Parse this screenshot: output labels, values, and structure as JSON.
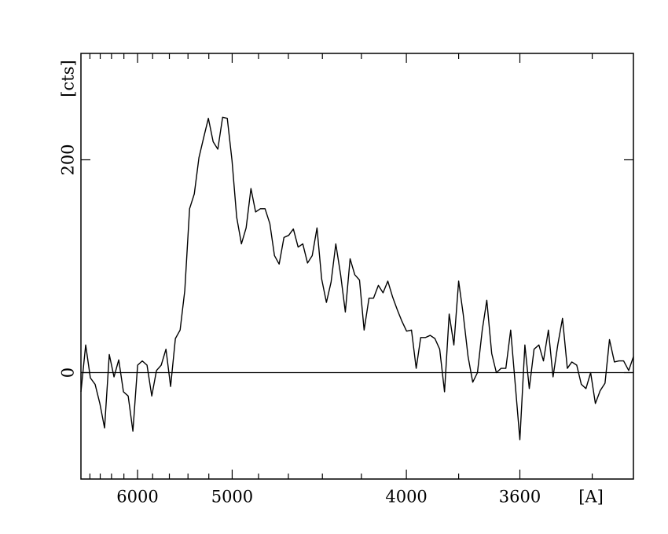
{
  "chart_data": {
    "type": "line",
    "y_label": "[cts]",
    "x_label": "[A]",
    "xscale": "inverse-square",
    "xlim": [
      6990,
      3300
    ],
    "xticks": [
      6000,
      5000,
      4000,
      3600
    ],
    "xminorticks": [
      6800,
      6600,
      6400,
      6200,
      5800,
      5600,
      5400,
      5200,
      4800,
      4600,
      4400,
      4200,
      3800,
      3400
    ],
    "ylim": [
      -100,
      300
    ],
    "yticks": [
      0,
      200
    ],
    "zero_line": true,
    "x": [
      6990,
      6888,
      6791,
      6697,
      6607,
      6521,
      6438,
      6358,
      6281,
      6207,
      6135,
      6066,
      5999,
      5935,
      5872,
      5811,
      5752,
      5695,
      5639,
      5586,
      5533,
      5482,
      5433,
      5384,
      5337,
      5292,
      5247,
      5204,
      5161,
      5120,
      5079,
      5040,
      5001,
      4964,
      4927,
      4891,
      4855,
      4821,
      4787,
      4754,
      4721,
      4690,
      4659,
      4628,
      4598,
      4569,
      4540,
      4512,
      4484,
      4457,
      4430,
      4404,
      4378,
      4353,
      4328,
      4303,
      4279,
      4255,
      4232,
      4209,
      4187,
      4164,
      4143,
      4121,
      4100,
      4079,
      4058,
      4038,
      4018,
      3999,
      3979,
      3960,
      3942,
      3923,
      3905,
      3887,
      3869,
      3851,
      3834,
      3817,
      3800,
      3784,
      3767,
      3751,
      3735,
      3719,
      3704,
      3688,
      3673,
      3658,
      3643,
      3628,
      3614,
      3600,
      3585,
      3572,
      3558,
      3544,
      3531,
      3517,
      3504,
      3491,
      3478,
      3465,
      3453,
      3440,
      3428,
      3416,
      3404,
      3392,
      3380,
      3368,
      3357,
      3345,
      3334,
      3323,
      3311,
      3300
    ],
    "series": [
      {
        "color": "#000000",
        "values": [
          -18,
          26,
          -5,
          -11,
          -29,
          -52,
          17,
          -4,
          12,
          -18,
          -22,
          -55,
          7,
          11,
          7,
          -22,
          2,
          7,
          22,
          -13,
          32,
          40,
          77,
          154,
          168,
          202,
          221,
          239,
          217,
          210,
          240,
          239,
          199,
          146,
          121,
          136,
          173,
          151,
          154,
          154,
          140,
          110,
          102,
          127,
          129,
          135,
          118,
          121,
          103,
          110,
          136,
          88,
          66,
          85,
          121,
          92,
          57,
          107,
          92,
          87,
          40,
          70,
          70,
          82,
          75,
          86,
          71,
          59,
          48,
          39,
          40,
          4,
          33,
          33,
          35,
          32,
          22,
          -18,
          55,
          26,
          86,
          55,
          15,
          -9,
          0,
          40,
          68,
          18,
          0,
          4,
          4,
          40,
          -11,
          -63,
          26,
          -15,
          22,
          26,
          11,
          40,
          -4,
          26,
          51,
          4,
          10,
          7,
          -11,
          -15,
          0,
          -29,
          -17,
          -10,
          31,
          10,
          11,
          11,
          2,
          15
        ]
      }
    ]
  }
}
